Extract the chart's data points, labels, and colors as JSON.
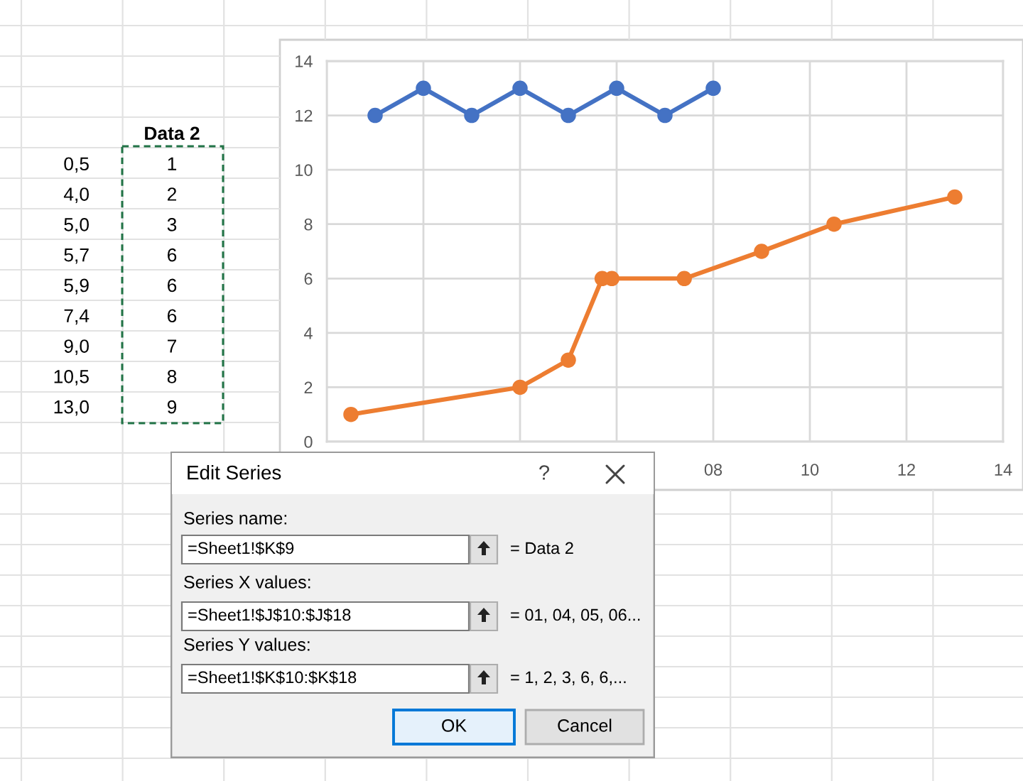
{
  "chart_data": [
    {
      "type": "line",
      "series": [
        {
          "color": "#4472c4",
          "x": [
            1,
            2,
            3,
            4,
            5,
            6,
            7,
            8
          ],
          "values": [
            12,
            13,
            12,
            13,
            12,
            13,
            12,
            13
          ]
        },
        {
          "color": "#ed7d31",
          "x": [
            0.5,
            4,
            5,
            5.7,
            5.9,
            7.4,
            9,
            10.5,
            13
          ],
          "values": [
            1,
            2,
            3,
            6,
            6,
            6,
            7,
            8,
            9
          ]
        }
      ],
      "xlim": [
        0,
        14
      ],
      "xticks": [
        {
          "value": 0,
          "label": null
        },
        {
          "value": 2,
          "label": null
        },
        {
          "value": 4,
          "label": null
        },
        {
          "value": 6,
          "label": null
        },
        {
          "value": 8,
          "label": "08"
        },
        10,
        12,
        14
      ],
      "ylim": [
        0,
        14
      ],
      "yticks": [
        0,
        2,
        4,
        6,
        8,
        10,
        12,
        14
      ],
      "grid": true,
      "marker": "circle",
      "line_style": "solid"
    },
    {
      "type": "other",
      "title": "Data 2",
      "annotations": [
        "0,5",
        "1",
        "4,0",
        "2",
        "5,0",
        "3",
        "5,7",
        "6",
        "5,9",
        "6",
        "7,4",
        "6",
        "9,0",
        "7",
        "10,5",
        "8",
        "13,0",
        "9"
      ]
    },
    {
      "type": "other",
      "title": "Edit Series",
      "annotations": [
        "?",
        "Series name:",
        "=Sheet1!$K$9",
        "= Data 2",
        "Series X values:",
        "=Sheet1!$J$10:$J$18",
        "= 01, 04, 05, 06...",
        "Series Y values:",
        "=Sheet1!$K$10:$K$18",
        "= 1, 2, 3, 6, 6,...",
        "OK",
        "Cancel"
      ]
    }
  ]
}
